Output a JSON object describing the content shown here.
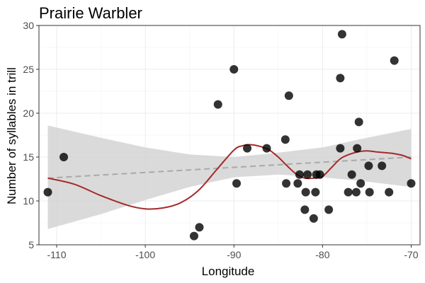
{
  "chart_data": {
    "type": "scatter",
    "title": "Prairie Warbler",
    "xlabel": "Longitude",
    "ylabel": "Number of syllables in trill",
    "xlim": [
      -112,
      -69
    ],
    "ylim": [
      5,
      30
    ],
    "xticks": [
      -110,
      -100,
      -90,
      -80,
      -70
    ],
    "yticks": [
      5,
      10,
      15,
      20,
      25,
      30
    ],
    "grid": true,
    "legend": "none",
    "points": [
      {
        "x": -111.0,
        "y": 11
      },
      {
        "x": -109.2,
        "y": 15
      },
      {
        "x": -94.5,
        "y": 6
      },
      {
        "x": -93.9,
        "y": 7
      },
      {
        "x": -91.8,
        "y": 21
      },
      {
        "x": -90.0,
        "y": 25
      },
      {
        "x": -89.7,
        "y": 12
      },
      {
        "x": -88.5,
        "y": 16
      },
      {
        "x": -86.3,
        "y": 16
      },
      {
        "x": -84.2,
        "y": 17
      },
      {
        "x": -84.1,
        "y": 12
      },
      {
        "x": -83.8,
        "y": 22
      },
      {
        "x": -82.8,
        "y": 12
      },
      {
        "x": -82.6,
        "y": 13
      },
      {
        "x": -82.0,
        "y": 9
      },
      {
        "x": -81.9,
        "y": 11
      },
      {
        "x": -81.7,
        "y": 13
      },
      {
        "x": -81.0,
        "y": 8
      },
      {
        "x": -80.8,
        "y": 11
      },
      {
        "x": -80.7,
        "y": 13
      },
      {
        "x": -80.3,
        "y": 13
      },
      {
        "x": -79.3,
        "y": 9
      },
      {
        "x": -78.0,
        "y": 16
      },
      {
        "x": -78.0,
        "y": 24
      },
      {
        "x": -77.8,
        "y": 29
      },
      {
        "x": -77.1,
        "y": 11
      },
      {
        "x": -76.7,
        "y": 13
      },
      {
        "x": -76.2,
        "y": 11
      },
      {
        "x": -76.1,
        "y": 16
      },
      {
        "x": -75.9,
        "y": 19
      },
      {
        "x": -75.7,
        "y": 12
      },
      {
        "x": -74.8,
        "y": 14
      },
      {
        "x": -74.7,
        "y": 11
      },
      {
        "x": -73.3,
        "y": 14
      },
      {
        "x": -72.5,
        "y": 11
      },
      {
        "x": -71.9,
        "y": 26
      },
      {
        "x": -70.0,
        "y": 12
      }
    ],
    "linear_fit": {
      "x": [
        -111,
        -70
      ],
      "y": [
        12.6,
        15.0
      ]
    },
    "confidence_band": {
      "x": [
        -111,
        -105,
        -100,
        -95,
        -90,
        -85,
        -80,
        -75,
        -70
      ],
      "lower": [
        6.8,
        8.5,
        10.1,
        11.6,
        12.7,
        13.0,
        12.7,
        12.2,
        11.6
      ],
      "upper": [
        18.6,
        17.2,
        16.1,
        15.3,
        15.0,
        15.5,
        16.1,
        17.2,
        18.2
      ]
    },
    "smooth_fit": {
      "x": [
        -111,
        -108,
        -105,
        -102,
        -100,
        -98,
        -96,
        -94,
        -92,
        -90,
        -89,
        -88,
        -87,
        -86,
        -85,
        -84,
        -83,
        -82,
        -81,
        -80,
        -79,
        -78,
        -77,
        -76,
        -75,
        -74,
        -73,
        -72,
        -71,
        -70
      ],
      "y": [
        12.6,
        11.9,
        10.6,
        9.5,
        9.1,
        9.2,
        9.8,
        11.2,
        13.5,
        15.8,
        16.3,
        16.4,
        16.2,
        15.8,
        15.0,
        14.0,
        13.1,
        12.6,
        12.6,
        12.8,
        13.8,
        14.8,
        15.3,
        15.6,
        15.7,
        15.6,
        15.5,
        15.4,
        15.2,
        14.8
      ]
    },
    "colors": {
      "points": "#000000",
      "band": "#d3d3d3",
      "linear_fit": "#a9a9a9",
      "smooth_fit": "#a52a2a"
    }
  }
}
